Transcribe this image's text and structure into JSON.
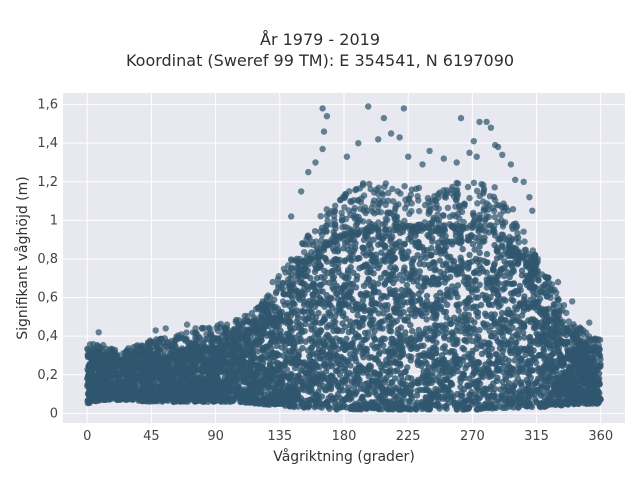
{
  "chart_data": {
    "type": "scatter",
    "title": "År 1979 - 2019",
    "subtitle": "Koordinat (Sweref 99 TM): E 354541, N 6197090",
    "xlabel": "Vågriktning (grader)",
    "ylabel": "Signifikant våghöjd (m)",
    "xlim": [
      -17,
      377
    ],
    "ylim": [
      -0.05,
      1.66
    ],
    "x_ticks": [
      0,
      45,
      90,
      135,
      180,
      225,
      270,
      315,
      360
    ],
    "x_tick_labels": [
      "0",
      "45",
      "90",
      "135",
      "180",
      "225",
      "270",
      "315",
      "360"
    ],
    "y_ticks": [
      0,
      0.2,
      0.4,
      0.6,
      0.8,
      1.0,
      1.2,
      1.4,
      1.6
    ],
    "y_tick_labels": [
      "0",
      "0,2",
      "0,4",
      "0,6",
      "0,8",
      "1",
      "1,2",
      "1,4",
      "1,6"
    ],
    "grid": true,
    "marker_color": "#2f566e",
    "background_color": "#e8e8f0",
    "envelope": {
      "x": [
        0,
        10,
        20,
        30,
        45,
        60,
        75,
        90,
        105,
        120,
        135,
        150,
        165,
        180,
        195,
        210,
        225,
        240,
        255,
        270,
        285,
        300,
        315,
        330,
        345,
        360
      ],
      "y_low": [
        0.05,
        0.07,
        0.07,
        0.07,
        0.06,
        0.06,
        0.06,
        0.06,
        0.06,
        0.05,
        0.04,
        0.03,
        0.02,
        0.02,
        0.02,
        0.02,
        0.02,
        0.02,
        0.02,
        0.02,
        0.02,
        0.03,
        0.03,
        0.04,
        0.05,
        0.05
      ],
      "y_dense_top": [
        0.3,
        0.3,
        0.28,
        0.3,
        0.3,
        0.31,
        0.32,
        0.34,
        0.38,
        0.44,
        0.55,
        0.72,
        0.85,
        0.92,
        0.94,
        0.95,
        0.95,
        0.94,
        0.95,
        0.96,
        0.93,
        0.85,
        0.7,
        0.5,
        0.35,
        0.3
      ],
      "y_sparse_top": [
        0.36,
        0.36,
        0.33,
        0.34,
        0.38,
        0.4,
        0.44,
        0.46,
        0.5,
        0.55,
        0.72,
        0.88,
        1.05,
        1.15,
        1.2,
        1.2,
        1.2,
        1.15,
        1.2,
        1.2,
        1.18,
        1.05,
        0.82,
        0.62,
        0.45,
        0.38
      ]
    },
    "outliers": [
      {
        "x": 165,
        "y": 1.58
      },
      {
        "x": 197,
        "y": 1.59
      },
      {
        "x": 222,
        "y": 1.58
      },
      {
        "x": 168,
        "y": 1.54
      },
      {
        "x": 208,
        "y": 1.53
      },
      {
        "x": 262,
        "y": 1.53
      },
      {
        "x": 275,
        "y": 1.51
      },
      {
        "x": 280,
        "y": 1.51
      },
      {
        "x": 283,
        "y": 1.48
      },
      {
        "x": 166,
        "y": 1.46
      },
      {
        "x": 213,
        "y": 1.45
      },
      {
        "x": 219,
        "y": 1.43
      },
      {
        "x": 204,
        "y": 1.42
      },
      {
        "x": 271,
        "y": 1.41
      },
      {
        "x": 286,
        "y": 1.39
      },
      {
        "x": 165,
        "y": 1.37
      },
      {
        "x": 190,
        "y": 1.4
      },
      {
        "x": 240,
        "y": 1.36
      },
      {
        "x": 268,
        "y": 1.35
      },
      {
        "x": 288,
        "y": 1.38
      },
      {
        "x": 182,
        "y": 1.33
      },
      {
        "x": 225,
        "y": 1.33
      },
      {
        "x": 250,
        "y": 1.32
      },
      {
        "x": 273,
        "y": 1.33
      },
      {
        "x": 291,
        "y": 1.34
      },
      {
        "x": 160,
        "y": 1.3
      },
      {
        "x": 235,
        "y": 1.29
      },
      {
        "x": 259,
        "y": 1.3
      },
      {
        "x": 297,
        "y": 1.29
      },
      {
        "x": 155,
        "y": 1.25
      },
      {
        "x": 300,
        "y": 1.21
      },
      {
        "x": 306,
        "y": 1.2
      },
      {
        "x": 150,
        "y": 1.15
      },
      {
        "x": 310,
        "y": 1.12
      },
      {
        "x": 312,
        "y": 1.05
      },
      {
        "x": 143,
        "y": 1.02
      },
      {
        "x": 55,
        "y": 0.44
      },
      {
        "x": 70,
        "y": 0.46
      },
      {
        "x": 48,
        "y": 0.43
      },
      {
        "x": 98,
        "y": 0.46
      },
      {
        "x": 110,
        "y": 0.48
      },
      {
        "x": 123,
        "y": 0.58
      },
      {
        "x": 130,
        "y": 0.68
      },
      {
        "x": 340,
        "y": 0.58
      },
      {
        "x": 330,
        "y": 0.68
      },
      {
        "x": 352,
        "y": 0.47
      },
      {
        "x": 8,
        "y": 0.42
      }
    ]
  }
}
